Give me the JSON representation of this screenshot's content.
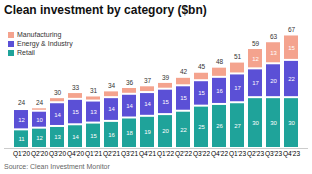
{
  "chart_data": {
    "type": "bar",
    "title": "Clean investment by category ($bn)",
    "caption": "Source: Clean Investment Monitor",
    "stacked": true,
    "legend": "top-left",
    "tick_labels": "x",
    "data_labels": true,
    "grid": false,
    "categories": [
      "Q1'20",
      "Q2'20",
      "Q3'20",
      "Q4'20",
      "Q1'21",
      "Q2'21",
      "Q3'21",
      "Q4'21",
      "Q1'22",
      "Q2'22",
      "Q3'22",
      "Q4'22",
      "Q1'23",
      "Q2'23",
      "Q3'23",
      "Q4'23"
    ],
    "totals": [
      24,
      24,
      30,
      33,
      31,
      34,
      36,
      37,
      39,
      42,
      45,
      48,
      51,
      59,
      63,
      67
    ],
    "ylim": [
      0,
      72
    ],
    "series": [
      {
        "name": "Retail",
        "color": "#1fa39a",
        "values": [
          11,
          12,
          13,
          14,
          15,
          16,
          18,
          19,
          20,
          22,
          25,
          26,
          27,
          30,
          30,
          30
        ],
        "value_labels": [
          "11",
          "12",
          "13",
          "14",
          "15",
          "16",
          "18",
          "19",
          "20",
          "22",
          "25",
          "26",
          "27",
          "30",
          "30",
          "30"
        ]
      },
      {
        "name": "Energy & Industry",
        "color": "#5b50d6",
        "values": [
          12,
          10,
          14,
          15,
          13,
          14,
          14,
          14,
          15,
          15,
          15,
          16,
          17,
          17,
          20,
          22
        ],
        "value_labels": [
          "12",
          "10",
          "14",
          "15",
          "13",
          "14",
          "14",
          "14",
          "15",
          "15",
          "15",
          "16",
          "17",
          "17",
          "20",
          "22"
        ]
      },
      {
        "name": "Manufacturing",
        "color": "#f4a38e",
        "values": [
          1,
          2,
          3,
          4,
          3,
          4,
          4,
          4,
          4,
          5,
          5,
          6,
          7,
          12,
          13,
          15
        ],
        "value_labels": [
          null,
          null,
          null,
          null,
          null,
          null,
          null,
          null,
          null,
          null,
          null,
          null,
          null,
          "12",
          "13",
          "15"
        ]
      }
    ]
  }
}
